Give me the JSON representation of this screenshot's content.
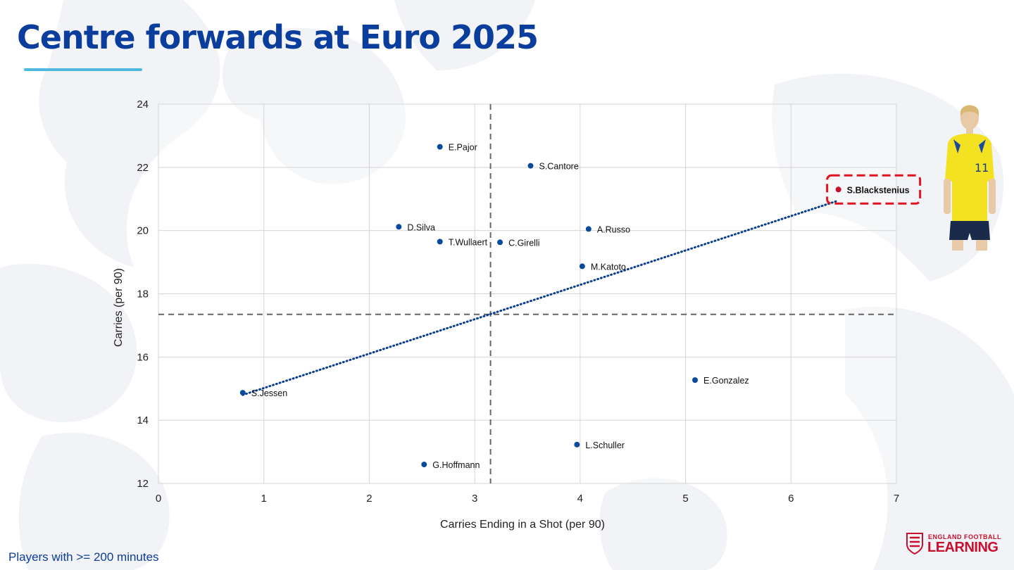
{
  "page": {
    "title": "Centre forwards at Euro 2025",
    "footnote": "Players with >= 200 minutes",
    "logo": {
      "line1": "ENGLAND FOOTBALL",
      "line2": "LEARNING"
    }
  },
  "colors": {
    "title": "#0a3d9c",
    "accent_underline": "#4fb8e0",
    "point": "#0a4a9c",
    "highlight_point": "#c8102e",
    "trendline": "#0a3d8c",
    "average_lines": "#666666",
    "highlight_box": "#e0141e",
    "logo": "#c8102e"
  },
  "chart_data": {
    "type": "scatter",
    "title": "",
    "xlabel": "Carries Ending in a Shot (per 90)",
    "ylabel": "Carries (per 90)",
    "xlim": [
      0,
      7
    ],
    "ylim": [
      12,
      24
    ],
    "xticks": [
      "0",
      "1",
      "2",
      "3",
      "4",
      "5",
      "6",
      "7"
    ],
    "yticks": [
      "12",
      "14",
      "16",
      "18",
      "20",
      "22",
      "24"
    ],
    "grid": true,
    "x_average_line": 3.15,
    "y_average_line": 17.35,
    "trendline": {
      "style": "dotted",
      "from": [
        0.8,
        14.8
      ],
      "to": [
        6.45,
        20.95
      ]
    },
    "highlight": "S.Blackstenius",
    "points": [
      {
        "label": "E.Pajor",
        "x": 2.67,
        "y": 22.65
      },
      {
        "label": "S.Cantore",
        "x": 3.53,
        "y": 22.05
      },
      {
        "label": "S.Blackstenius",
        "x": 6.45,
        "y": 21.3
      },
      {
        "label": "D.Silva",
        "x": 2.28,
        "y": 20.12
      },
      {
        "label": "A.Russo",
        "x": 4.08,
        "y": 20.05
      },
      {
        "label": "T.Wullaert",
        "x": 2.67,
        "y": 19.65
      },
      {
        "label": "C.Girelli",
        "x": 3.24,
        "y": 19.63
      },
      {
        "label": "M.Katoto",
        "x": 4.02,
        "y": 18.87
      },
      {
        "label": "E.Gonzalez",
        "x": 5.09,
        "y": 15.27
      },
      {
        "label": "S.Jessen",
        "x": 0.8,
        "y": 14.87
      },
      {
        "label": "L.Schuller",
        "x": 3.97,
        "y": 13.23
      },
      {
        "label": "G.Hoffmann",
        "x": 2.52,
        "y": 12.6
      }
    ]
  }
}
